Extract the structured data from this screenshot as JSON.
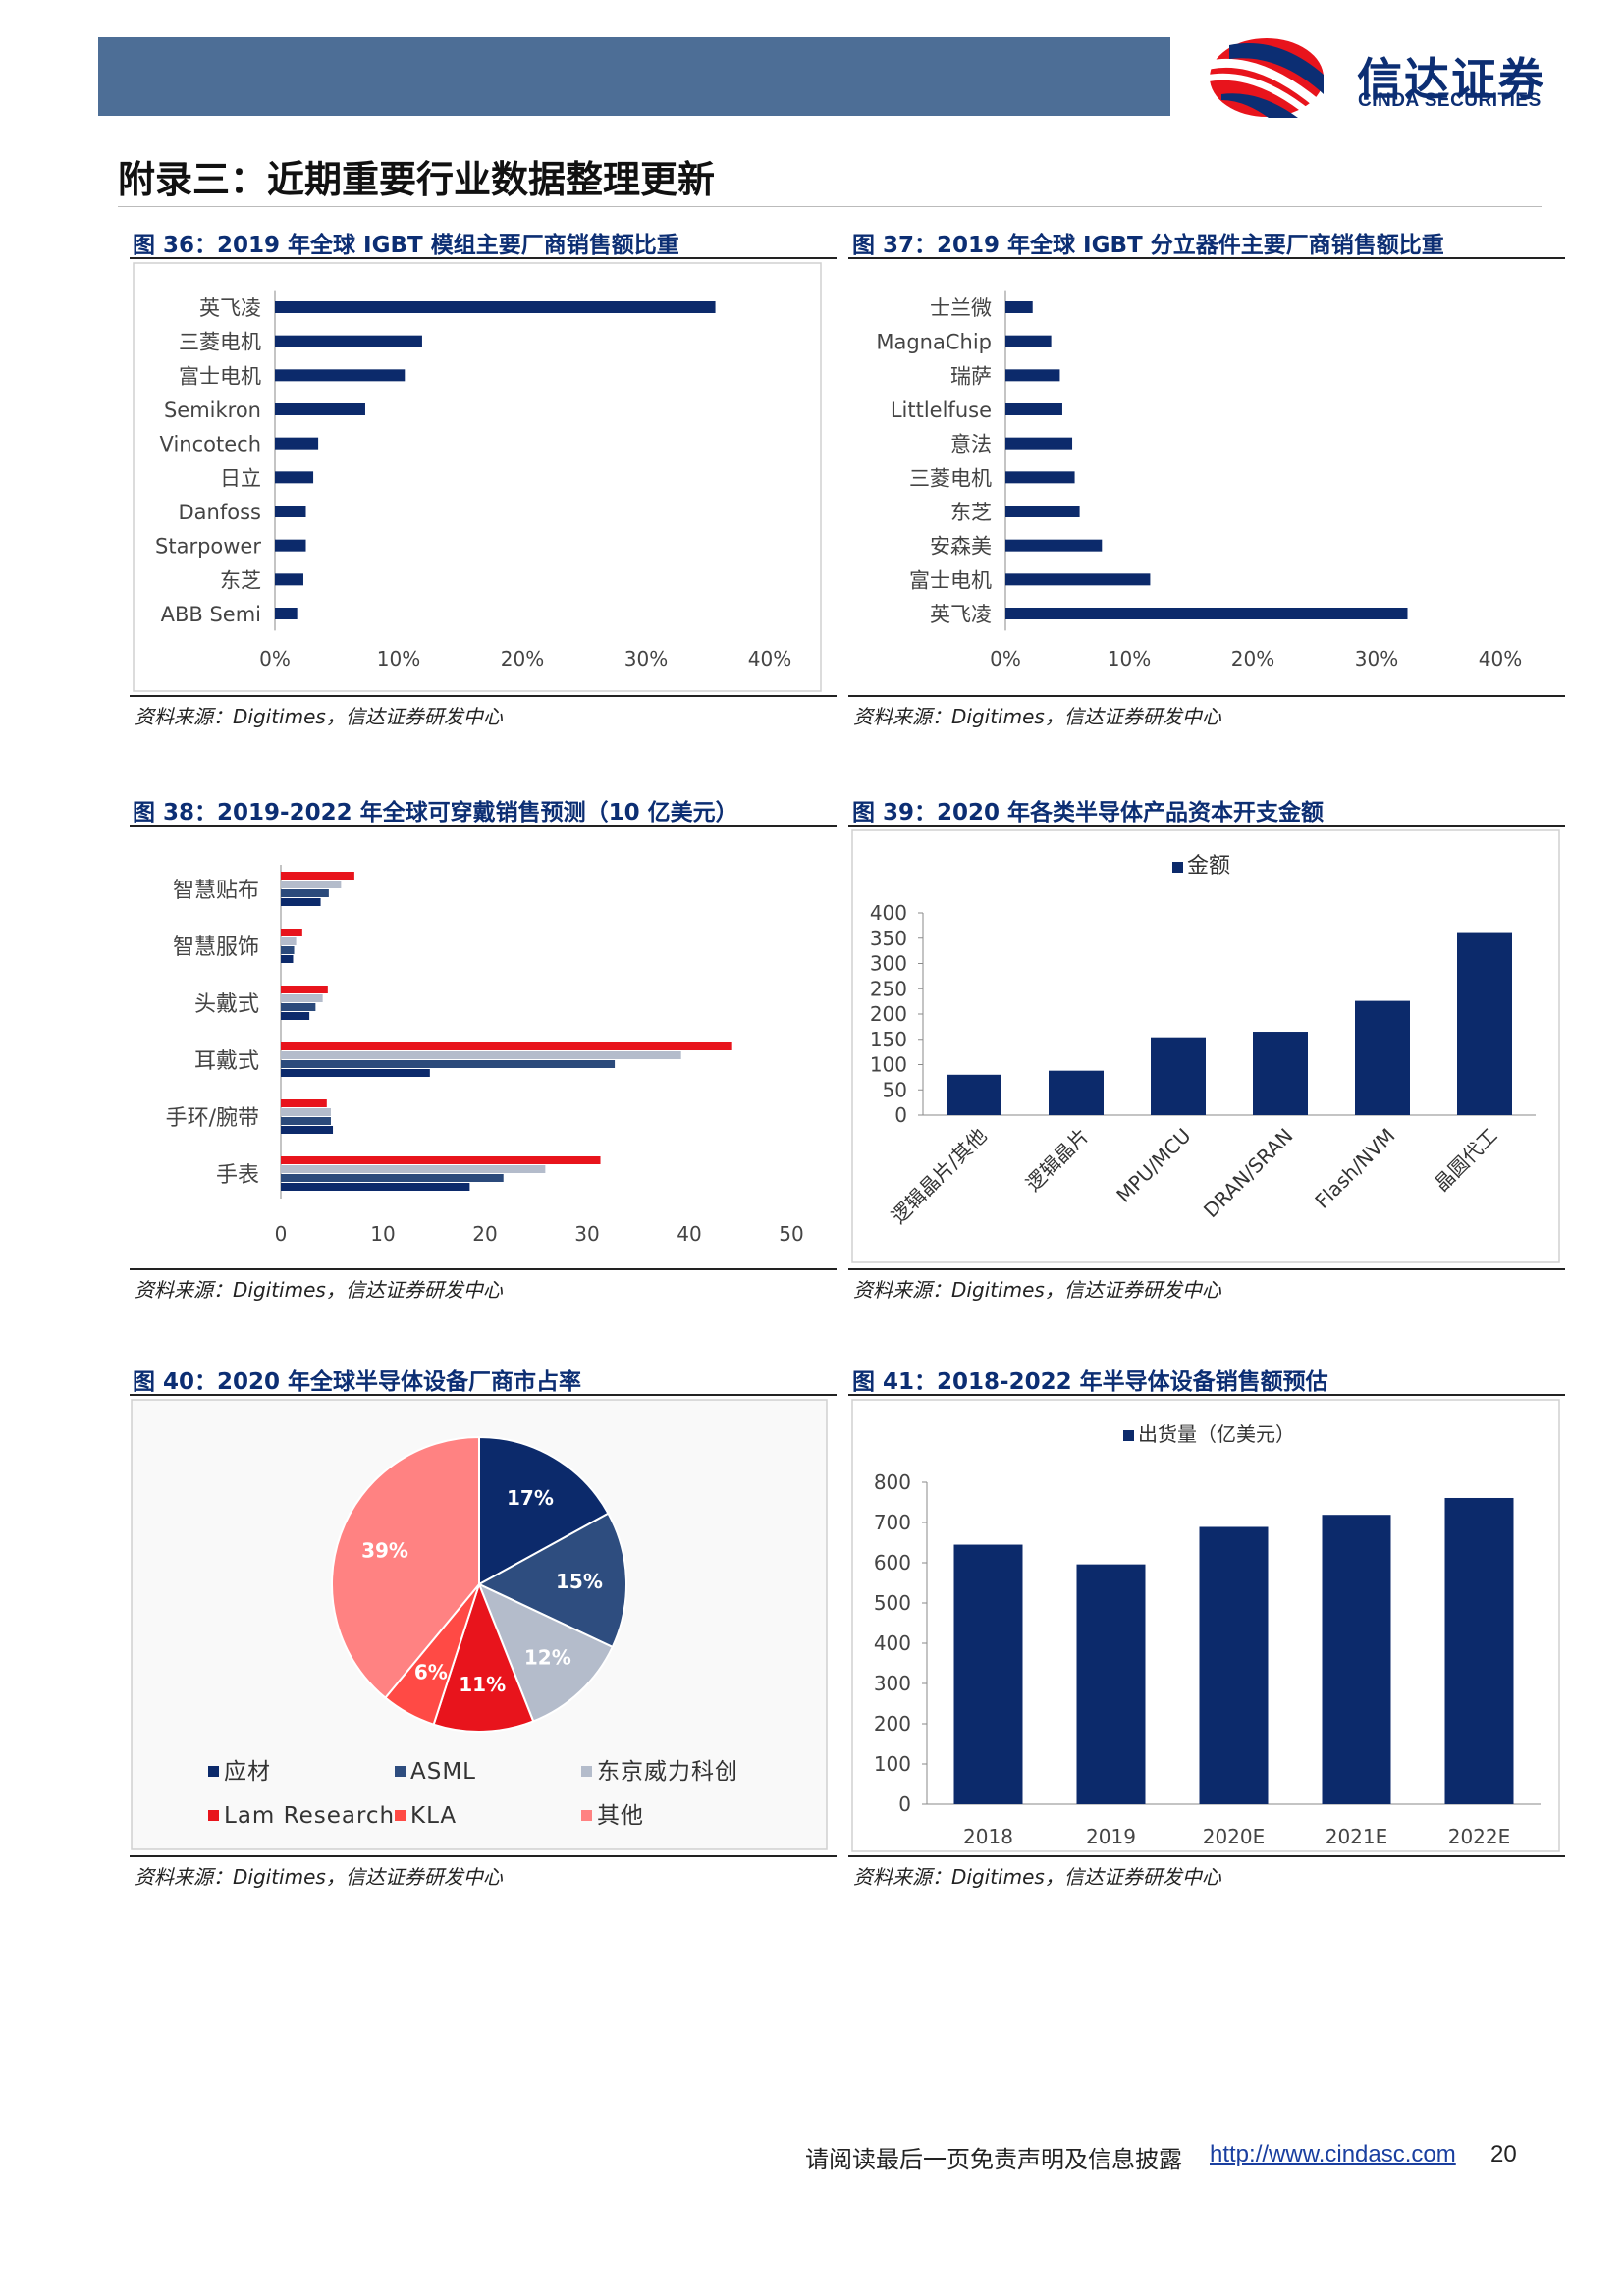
{
  "header": {
    "logo_cn": "信达证券",
    "logo_en": "CINDA SECURITIES",
    "brand_color": "#0c2e73",
    "bar_color": "#4d6e96"
  },
  "section": {
    "title": "附录三：近期重要行业数据整理更新"
  },
  "figures": {
    "fig36": {
      "title": "图 36：2019 年全球 IGBT 模组主要厂商销售额比重",
      "source": "资料来源：Digitimes，信达证券研发中心"
    },
    "fig37": {
      "title": "图 37：2019 年全球 IGBT 分立器件主要厂商销售额比重",
      "source": "资料来源：Digitimes，信达证券研发中心"
    },
    "fig38": {
      "title": "图 38：2019-2022 年全球可穿戴销售预测（10 亿美元）",
      "source": "资料来源：Digitimes，信达证券研发中心"
    },
    "fig39": {
      "title": "图 39：2020 年各类半导体产品资本开支金额",
      "source": "资料来源：Digitimes，信达证券研发中心"
    },
    "fig40": {
      "title": "图 40：2020 年全球半导体设备厂商市占率",
      "source": "资料来源：Digitimes，信达证券研发中心"
    },
    "fig41": {
      "title": "图 41：2018-2022 年半导体设备销售额预估",
      "source": "资料来源：Digitimes，信达证券研发中心"
    }
  },
  "chart_data": [
    {
      "id": "fig36",
      "type": "bar",
      "orientation": "horizontal",
      "categories": [
        "英飞凌",
        "三菱电机",
        "富士电机",
        "Semikron",
        "Vincotech",
        "日立",
        "Danfoss",
        "Starpower",
        "东芝",
        "ABB Semi"
      ],
      "values": [
        35.6,
        11.9,
        10.5,
        7.3,
        3.5,
        3.1,
        2.5,
        2.5,
        2.3,
        1.8
      ],
      "xlim": [
        0,
        40
      ],
      "x_ticks": [
        "0%",
        "10%",
        "20%",
        "30%",
        "40%"
      ],
      "color": "#0c2a6b"
    },
    {
      "id": "fig37",
      "type": "bar",
      "orientation": "horizontal",
      "categories": [
        "士兰微",
        "MagnaChip",
        "瑞萨",
        "Littlelfuse",
        "意法",
        "三菱电机",
        "东芝",
        "安森美",
        "富士电机",
        "英飞凌"
      ],
      "values": [
        2.2,
        3.7,
        4.4,
        4.6,
        5.4,
        5.6,
        6.0,
        7.8,
        11.7,
        32.5
      ],
      "xlim": [
        0,
        40
      ],
      "x_ticks": [
        "0%",
        "10%",
        "20%",
        "30%",
        "40%"
      ],
      "color": "#0c2a6b"
    },
    {
      "id": "fig38",
      "type": "bar",
      "orientation": "horizontal",
      "categories": [
        "智慧贴布",
        "智慧服饰",
        "头戴式",
        "耳戴式",
        "手环/腕带",
        "手表"
      ],
      "series": [
        {
          "color": "#e8141c",
          "values": [
            7.2,
            2.1,
            4.6,
            44.2,
            4.5,
            31.3
          ]
        },
        {
          "color": "#b4bccb",
          "values": [
            5.9,
            1.5,
            4.1,
            39.2,
            4.9,
            25.9
          ]
        },
        {
          "color": "#2b4a7b",
          "values": [
            4.7,
            1.3,
            3.4,
            32.7,
            4.9,
            21.8
          ]
        },
        {
          "color": "#0c2a6b",
          "values": [
            3.9,
            1.2,
            2.8,
            14.6,
            5.1,
            18.5
          ]
        }
      ],
      "xlim": [
        0,
        50
      ],
      "x_ticks": [
        "0",
        "10",
        "20",
        "30",
        "40",
        "50"
      ]
    },
    {
      "id": "fig39",
      "type": "bar",
      "legend": "金额",
      "categories": [
        "逻辑晶片/其他",
        "逻辑晶片",
        "MPU/MCU",
        "DRAN/SRAN",
        "Flash/NVM",
        "晶圆代工"
      ],
      "values": [
        80,
        88,
        154,
        165,
        226,
        362
      ],
      "ylim": [
        0,
        400
      ],
      "y_ticks": [
        "0",
        "50",
        "100",
        "150",
        "200",
        "250",
        "300",
        "350",
        "400"
      ],
      "color": "#0c2a6b"
    },
    {
      "id": "fig40",
      "type": "pie",
      "labels": [
        "应材",
        "ASML",
        "东京威力科创",
        "Lam Research",
        "KLA",
        "其他"
      ],
      "values": [
        17,
        15,
        12,
        11,
        6,
        39
      ],
      "value_labels": [
        "17%",
        "15%",
        "12%",
        "11%",
        "6%",
        "39%"
      ],
      "colors": [
        "#0c2a6b",
        "#2e4d7f",
        "#b4bccb",
        "#e8141c",
        "#ff4a45",
        "#ff8282"
      ]
    },
    {
      "id": "fig41",
      "type": "bar",
      "legend": "出货量（亿美元）",
      "categories": [
        "2018",
        "2019",
        "2020E",
        "2021E",
        "2022E"
      ],
      "values": [
        645,
        596,
        689,
        719,
        761
      ],
      "ylim": [
        0,
        800
      ],
      "y_ticks": [
        "0",
        "100",
        "200",
        "300",
        "400",
        "500",
        "600",
        "700",
        "800"
      ],
      "color": "#0c2a6b"
    }
  ],
  "footer": {
    "disclaimer": "请阅读最后一页免责声明及信息披露",
    "link": "http://www.cindasc.com",
    "page": "20"
  }
}
